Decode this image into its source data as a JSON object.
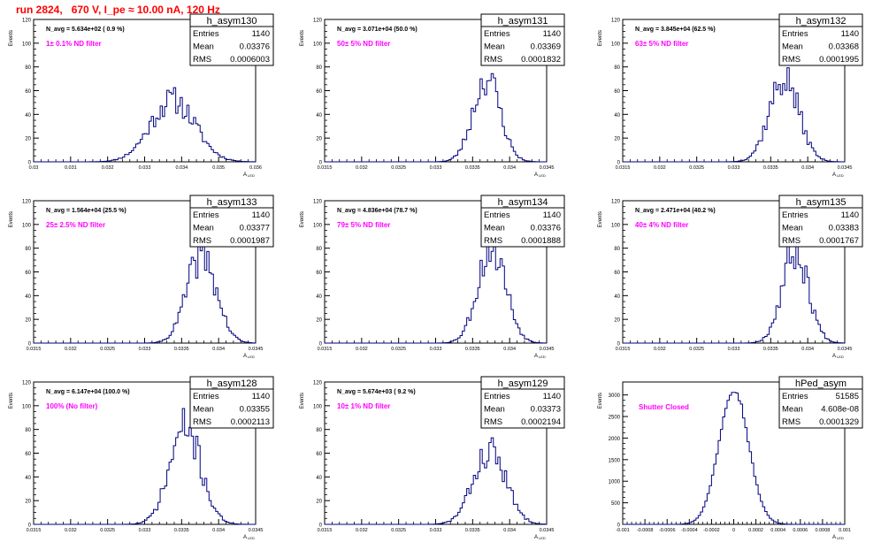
{
  "run_title": "run 2824,   670 V, I_pe ≈ 10.00 nA, 120 Hz",
  "colors": {
    "title": "#ff0000",
    "histogram": "#000080",
    "annotation": "#ff00ff",
    "frame": "#000000"
  },
  "ylabel": "Events",
  "xlabel": "A",
  "xlabel_sub": "LED",
  "stats_labels": {
    "entries": "Entries",
    "mean": "Mean",
    "rms": "RMS"
  },
  "chart_data": [
    {
      "type": "bar",
      "name": "h_asym130",
      "navg": "N_avg = 5.634e+02 ( 0.9 %)",
      "annotation": "1± 0.1% ND filter",
      "entries": "1140",
      "mean": "0.03376",
      "rms": "0.0006003",
      "xlim": [
        0.03,
        0.036
      ],
      "ylim": [
        0,
        120
      ],
      "xticks": [
        "0.03",
        "0.031",
        "0.032",
        "0.033",
        "0.034",
        "0.035",
        "0.036"
      ],
      "yticks": [
        "0",
        "20",
        "40",
        "60",
        "80",
        "100",
        "120"
      ],
      "center": 0.03376,
      "sigma": 0.0006003,
      "peak": 52,
      "seed": 11
    },
    {
      "type": "bar",
      "name": "h_asym131",
      "navg": "N_avg = 3.071e+04 (50.0 %)",
      "annotation": "50± 5% ND filter",
      "entries": "1140",
      "mean": "0.03369",
      "rms": "0.0001832",
      "xlim": [
        0.0315,
        0.0345
      ],
      "ylim": [
        0,
        120
      ],
      "xticks": [
        "0.0315",
        "0.032",
        "0.0325",
        "0.033",
        "0.0335",
        "0.034",
        "0.0345"
      ],
      "yticks": [
        "0",
        "20",
        "40",
        "60",
        "80",
        "100",
        "120"
      ],
      "center": 0.03369,
      "sigma": 0.0001832,
      "peak": 71,
      "seed": 23
    },
    {
      "type": "bar",
      "name": "h_asym132",
      "navg": "N_avg = 3.845e+04 (62.5 %)",
      "annotation": "63± 5% ND filter",
      "entries": "1140",
      "mean": "0.03368",
      "rms": "0.0001995",
      "xlim": [
        0.0315,
        0.0345
      ],
      "ylim": [
        0,
        120
      ],
      "xticks": [
        "0.0315",
        "0.032",
        "0.0325",
        "0.033",
        "0.0335",
        "0.034",
        "0.0345"
      ],
      "yticks": [
        "0",
        "20",
        "40",
        "60",
        "80",
        "100",
        "120"
      ],
      "center": 0.03368,
      "sigma": 0.0001995,
      "peak": 70,
      "seed": 37
    },
    {
      "type": "bar",
      "name": "h_asym133",
      "navg": "N_avg = 1.564e+04 (25.5 %)",
      "annotation": "25± 2.5% ND filter",
      "entries": "1140",
      "mean": "0.03377",
      "rms": "0.0001987",
      "xlim": [
        0.0315,
        0.0345
      ],
      "ylim": [
        0,
        120
      ],
      "xticks": [
        "0.0315",
        "0.032",
        "0.0325",
        "0.033",
        "0.0335",
        "0.034",
        "0.0345"
      ],
      "yticks": [
        "0",
        "20",
        "40",
        "60",
        "80",
        "100",
        "120"
      ],
      "center": 0.03377,
      "sigma": 0.0001987,
      "peak": 74,
      "seed": 41
    },
    {
      "type": "bar",
      "name": "h_asym134",
      "navg": "N_avg = 4.836e+04 (78.7 %)",
      "annotation": "79± 5% ND filter",
      "entries": "1140",
      "mean": "0.03376",
      "rms": "0.0001888",
      "xlim": [
        0.0315,
        0.0345
      ],
      "ylim": [
        0,
        120
      ],
      "xticks": [
        "0.0315",
        "0.032",
        "0.0325",
        "0.033",
        "0.0335",
        "0.034",
        "0.0345"
      ],
      "yticks": [
        "0",
        "20",
        "40",
        "60",
        "80",
        "100",
        "120"
      ],
      "center": 0.03376,
      "sigma": 0.0001888,
      "peak": 82,
      "seed": 53
    },
    {
      "type": "bar",
      "name": "h_asym135",
      "navg": "N_avg = 2.471e+04 (40.2 %)",
      "annotation": "40± 4% ND filter",
      "entries": "1140",
      "mean": "0.03383",
      "rms": "0.0001767",
      "xlim": [
        0.0315,
        0.0345
      ],
      "ylim": [
        0,
        120
      ],
      "xticks": [
        "0.0315",
        "0.032",
        "0.0325",
        "0.033",
        "0.0335",
        "0.034",
        "0.0345"
      ],
      "yticks": [
        "0",
        "20",
        "40",
        "60",
        "80",
        "100",
        "120"
      ],
      "center": 0.03383,
      "sigma": 0.0001767,
      "peak": 78,
      "seed": 67
    },
    {
      "type": "bar",
      "name": "h_asym128",
      "navg": "N_avg = 6.147e+04 (100.0 %)",
      "annotation": "100% (No filter)",
      "entries": "1140",
      "mean": "0.03355",
      "rms": "0.0002113",
      "xlim": [
        0.0315,
        0.0345
      ],
      "ylim": [
        0,
        120
      ],
      "xticks": [
        "0.0315",
        "0.032",
        "0.0325",
        "0.033",
        "0.0335",
        "0.034",
        "0.0345"
      ],
      "yticks": [
        "0",
        "20",
        "40",
        "60",
        "80",
        "100",
        "120"
      ],
      "center": 0.03355,
      "sigma": 0.0002113,
      "peak": 81,
      "seed": 71
    },
    {
      "type": "bar",
      "name": "h_asym129",
      "navg": "N_avg = 5.674e+03 ( 9.2 %)",
      "annotation": "10± 1% ND filter",
      "entries": "1140",
      "mean": "0.03373",
      "rms": "0.0002194",
      "xlim": [
        0.0315,
        0.0345
      ],
      "ylim": [
        0,
        120
      ],
      "xticks": [
        "0.0315",
        "0.032",
        "0.0325",
        "0.033",
        "0.0335",
        "0.034",
        "0.0345"
      ],
      "yticks": [
        "0",
        "20",
        "40",
        "60",
        "80",
        "100",
        "120"
      ],
      "center": 0.03373,
      "sigma": 0.0002194,
      "peak": 62,
      "seed": 83
    },
    {
      "type": "bar",
      "name": "hPed_asym",
      "navg": "",
      "annotation": "Shutter Closed",
      "entries": "51585",
      "mean": "4.608e-08",
      "rms": "0.0001329",
      "xlim": [
        -0.001,
        0.001
      ],
      "ylim": [
        0,
        3300
      ],
      "xticks": [
        "-0.001",
        "-0.0008",
        "-0.0006",
        "-0.0004",
        "-0.0002",
        "0",
        "0.0002",
        "0.0004",
        "0.0006",
        "0.0008",
        "0.001"
      ],
      "yticks": [
        "0",
        "500",
        "1000",
        "1500",
        "2000",
        "2500",
        "3000"
      ],
      "center": 0.0,
      "sigma": 0.0001329,
      "peak": 3150,
      "seed": 97
    }
  ]
}
